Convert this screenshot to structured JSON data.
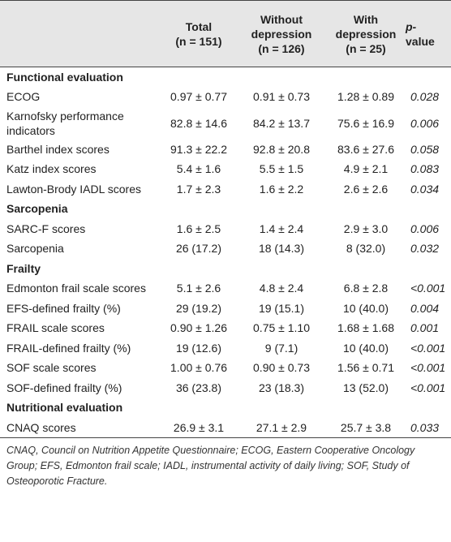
{
  "table": {
    "header": [
      [],
      [
        "Total",
        "(n = 151)"
      ],
      [
        "Without",
        "depression",
        "(n = 126)"
      ],
      [
        "With",
        "depression",
        "(n = 25)"
      ],
      [
        "p-",
        "value"
      ]
    ],
    "sections": [
      {
        "title": "Functional evaluation",
        "rows": [
          [
            "ECOG",
            "0.97 ± 0.77",
            "0.91 ± 0.73",
            "1.28 ± 0.89",
            "0.028"
          ],
          [
            "Karnofsky performance indicators",
            "82.8 ± 14.6",
            "84.2 ± 13.7",
            "75.6 ± 16.9",
            "0.006"
          ],
          [
            "Barthel index scores",
            "91.3 ± 22.2",
            "92.8 ± 20.8",
            "83.6 ± 27.6",
            "0.058"
          ],
          [
            "Katz index scores",
            "5.4 ± 1.6",
            "5.5 ± 1.5",
            "4.9 ± 2.1",
            "0.083"
          ],
          [
            "Lawton-Brody IADL scores",
            "1.7 ± 2.3",
            "1.6 ± 2.2",
            "2.6 ± 2.6",
            "0.034"
          ]
        ]
      },
      {
        "title": "Sarcopenia",
        "rows": [
          [
            "SARC-F scores",
            "1.6 ± 2.5",
            "1.4 ± 2.4",
            "2.9 ± 3.0",
            "0.006"
          ],
          [
            "Sarcopenia",
            "26 (17.2)",
            "18 (14.3)",
            "8 (32.0)",
            "0.032"
          ]
        ]
      },
      {
        "title": "Frailty",
        "rows": [
          [
            "Edmonton frail scale scores",
            "5.1 ± 2.6",
            "4.8 ± 2.4",
            "6.8 ± 2.8",
            "<0.001"
          ],
          [
            "EFS-defined frailty (%)",
            "29 (19.2)",
            "19 (15.1)",
            "10 (40.0)",
            "0.004"
          ],
          [
            "FRAIL scale scores",
            "0.90 ± 1.26",
            "0.75 ± 1.10",
            "1.68 ± 1.68",
            "0.001"
          ],
          [
            "FRAIL-defined frailty (%)",
            "19 (12.6)",
            "9 (7.1)",
            "10 (40.0)",
            "<0.001"
          ],
          [
            "SOF scale scores",
            "1.00 ± 0.76",
            "0.90 ± 0.73",
            "1.56 ± 0.71",
            "<0.001"
          ],
          [
            "SOF-defined frailty (%)",
            "36 (23.8)",
            "23 (18.3)",
            "13 (52.0)",
            "<0.001"
          ]
        ]
      },
      {
        "title": "Nutritional evaluation",
        "rows": [
          [
            "CNAQ scores",
            "26.9 ± 3.1",
            "27.1 ± 2.9",
            "25.7 ± 3.8",
            "0.033"
          ]
        ]
      }
    ]
  },
  "footnote": "CNAQ, Council on Nutrition Appetite Questionnaire; ECOG, Eastern Cooperative Oncology Group; EFS, Edmonton frail scale; IADL, instrumental activity of daily living; SOF, Study of Osteoporotic Fracture."
}
